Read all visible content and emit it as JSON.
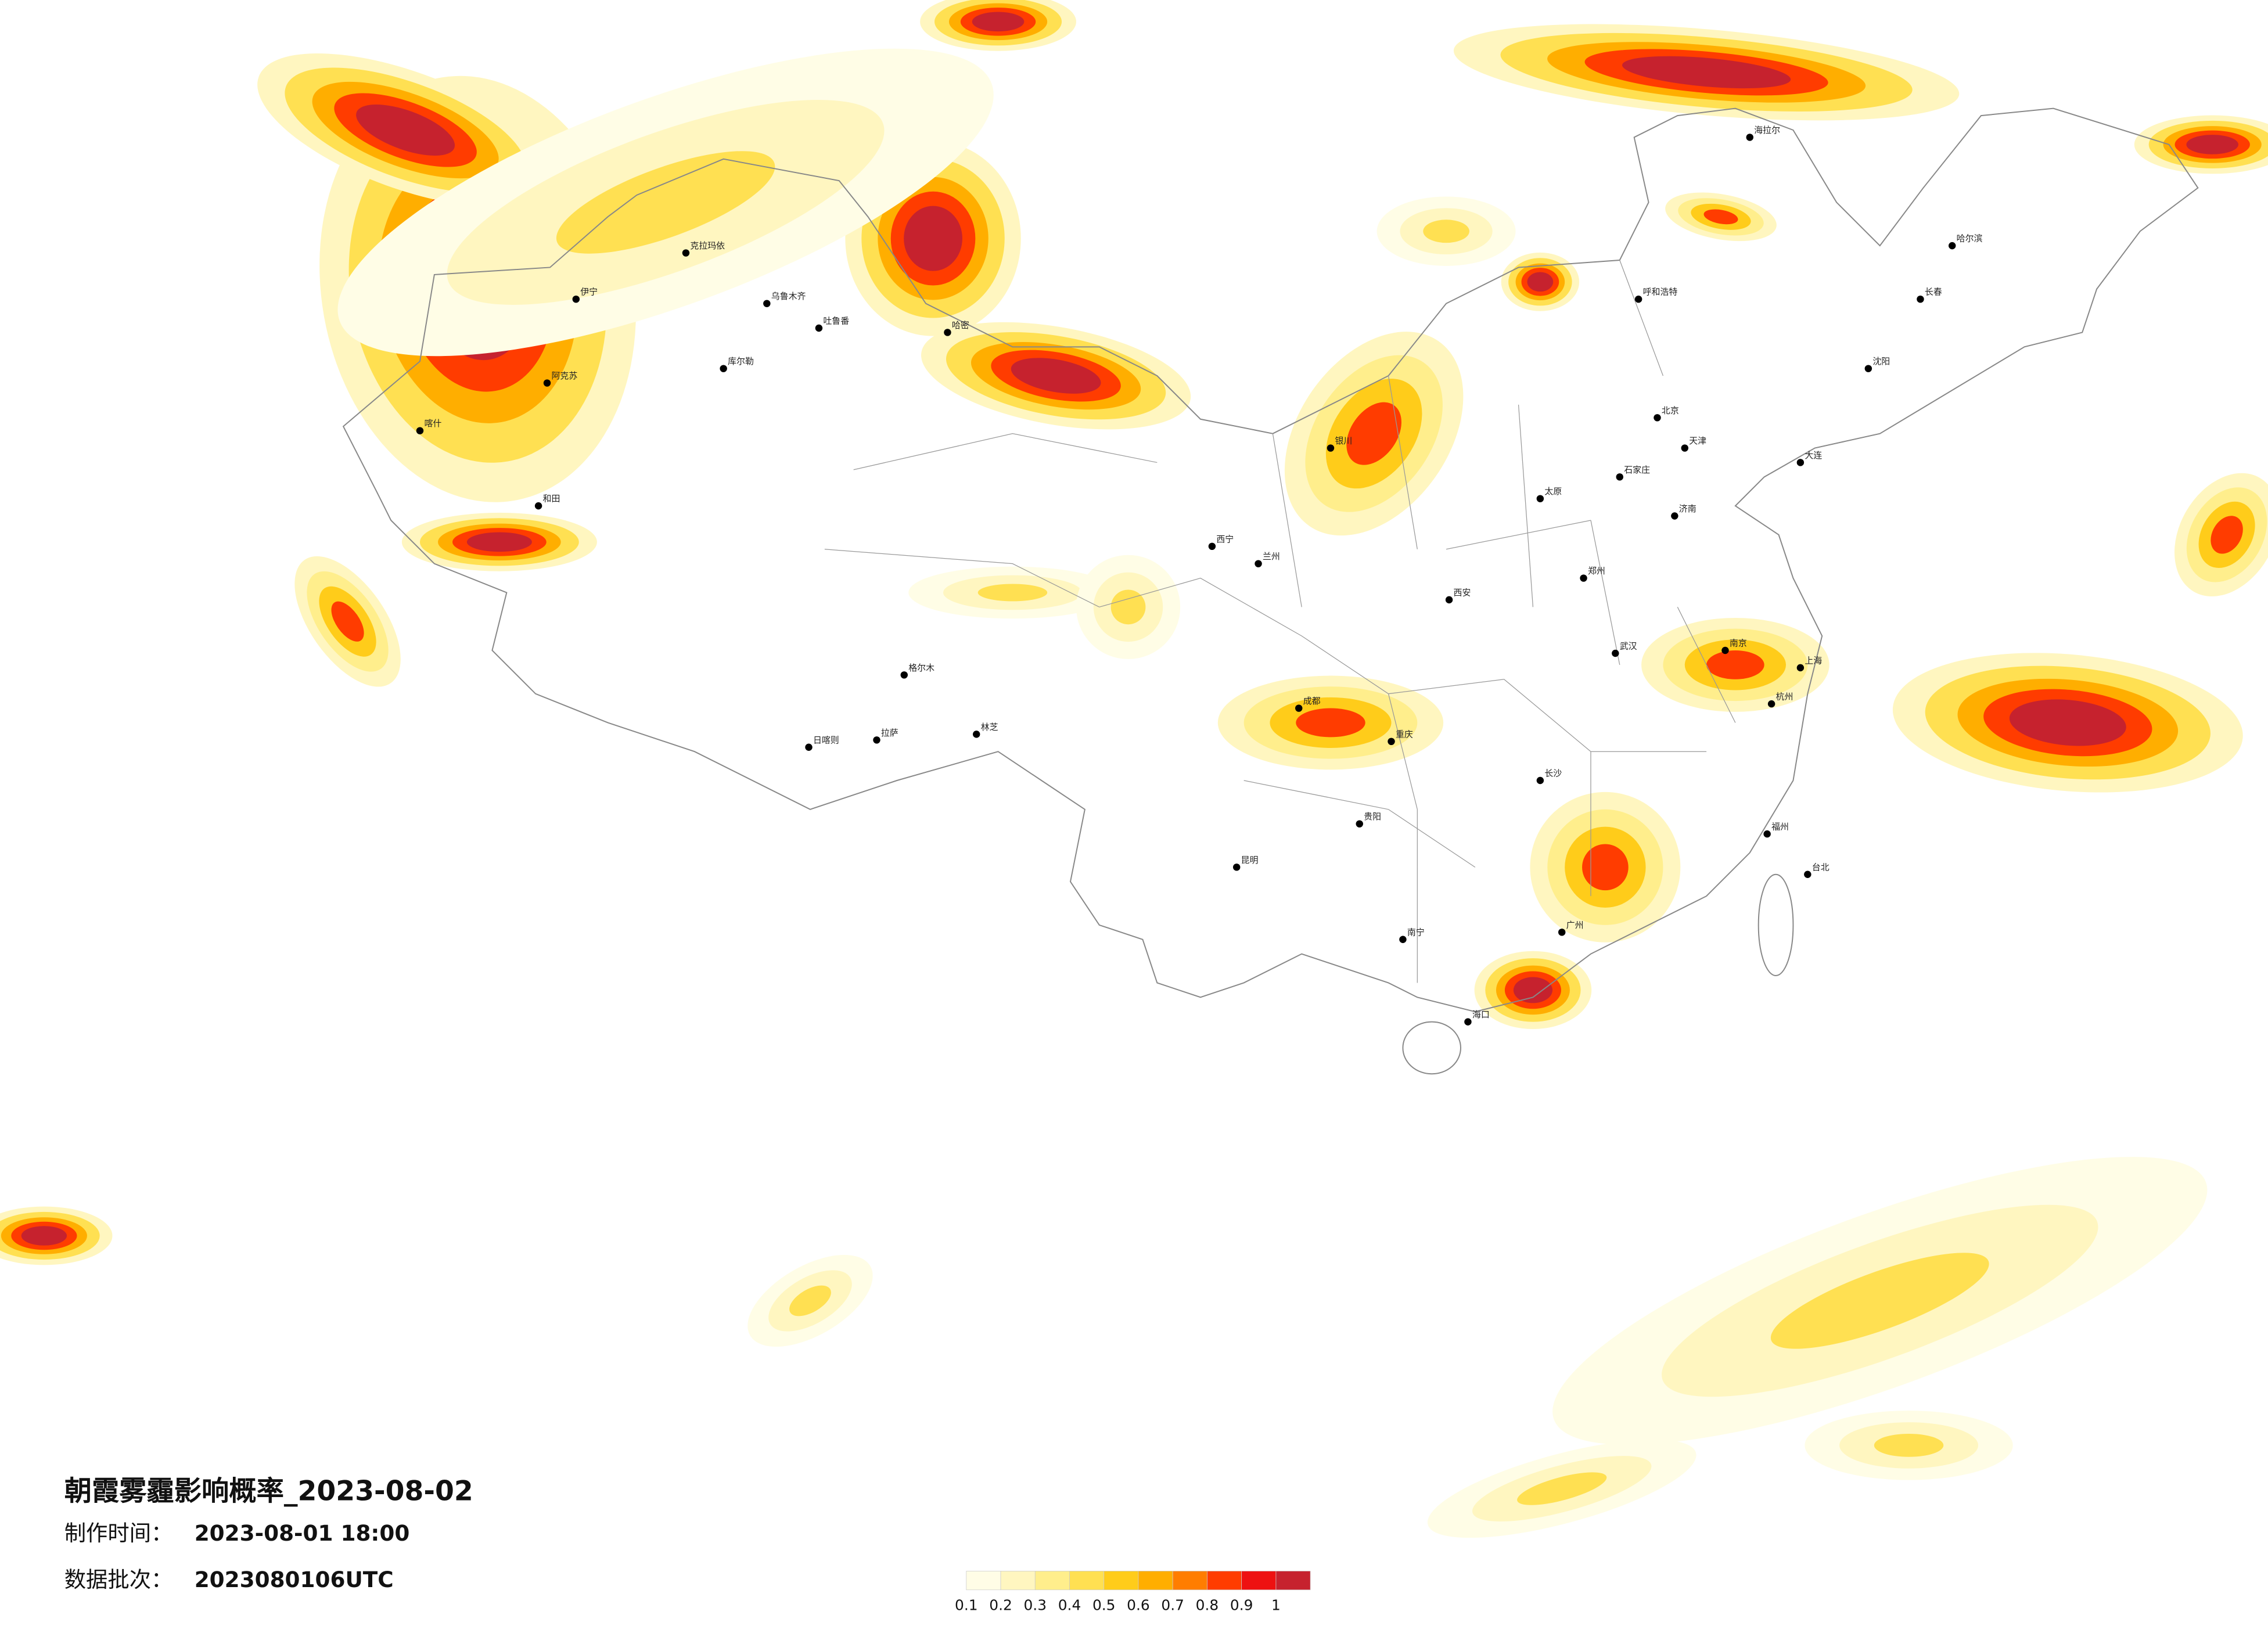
{
  "title": "朝霞雾霾影响概率_2023-08-02",
  "info": {
    "time_label": "制作时间：",
    "time_value": "2023-08-01 18:00",
    "batch_label": "数据批次：",
    "batch_value": "2023080106UTC"
  },
  "legend": {
    "ticks": [
      0.1,
      0.2,
      0.3,
      0.4,
      0.5,
      0.6,
      0.7,
      0.8,
      0.9,
      1
    ],
    "colors": [
      "#fffde6",
      "#fff6c0",
      "#ffee8c",
      "#ffe052",
      "#ffcc1a",
      "#ffae00",
      "#ff7d00",
      "#ff3c00",
      "#ee1111",
      "#c6222e"
    ]
  },
  "cities": [
    "克拉玛依",
    "乌鲁木齐",
    "吐鲁番",
    "库尔勒",
    "阿克苏",
    "喀什",
    "和田",
    "伊宁",
    "哈密",
    "拉萨",
    "日喀则",
    "林芝",
    "格尔木",
    "西宁",
    "兰州",
    "银川",
    "呼和浩特",
    "北京",
    "天津",
    "石家庄",
    "太原",
    "济南",
    "郑州",
    "西安",
    "成都",
    "重庆",
    "武汉",
    "长沙",
    "南京",
    "上海",
    "杭州",
    "福州",
    "广州",
    "南宁",
    "昆明",
    "贵阳",
    "海口",
    "哈尔滨",
    "长春",
    "沈阳",
    "海拉尔",
    "台北",
    "大连"
  ]
}
